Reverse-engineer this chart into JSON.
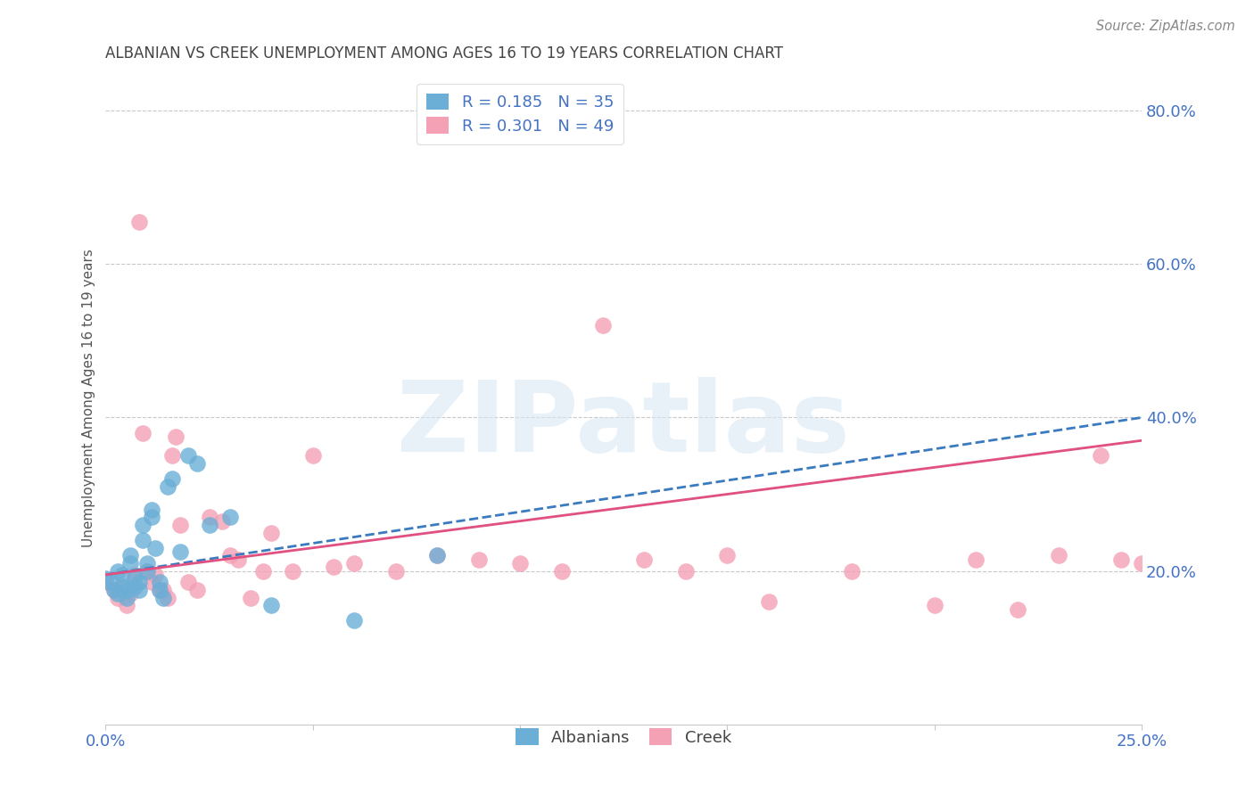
{
  "title": "ALBANIAN VS CREEK UNEMPLOYMENT AMONG AGES 16 TO 19 YEARS CORRELATION CHART",
  "source": "Source: ZipAtlas.com",
  "ylabel": "Unemployment Among Ages 16 to 19 years",
  "xlabel_albanians": "Albanians",
  "xlabel_creek": "Creek",
  "xlim": [
    0.0,
    0.25
  ],
  "ylim": [
    0.0,
    0.85
  ],
  "xticks": [
    0.0,
    0.05,
    0.1,
    0.15,
    0.2,
    0.25
  ],
  "xtick_labels": [
    "0.0%",
    "",
    "",
    "",
    "",
    "25.0%"
  ],
  "ytick_right_labels": [
    "20.0%",
    "40.0%",
    "60.0%",
    "80.0%"
  ],
  "ytick_right_values": [
    0.2,
    0.4,
    0.6,
    0.8
  ],
  "albanian_R": 0.185,
  "albanian_N": 35,
  "creek_R": 0.301,
  "creek_N": 49,
  "albanian_color": "#6baed6",
  "creek_color": "#f4a0b5",
  "albanian_line_color": "#3a7abf",
  "creek_line_color": "#e05080",
  "albanian_x": [
    0.0,
    0.001,
    0.002,
    0.003,
    0.003,
    0.004,
    0.004,
    0.005,
    0.005,
    0.006,
    0.006,
    0.007,
    0.007,
    0.008,
    0.008,
    0.009,
    0.009,
    0.01,
    0.01,
    0.011,
    0.011,
    0.012,
    0.013,
    0.013,
    0.014,
    0.015,
    0.016,
    0.018,
    0.02,
    0.022,
    0.025,
    0.03,
    0.04,
    0.06,
    0.08
  ],
  "albanian_y": [
    0.19,
    0.185,
    0.175,
    0.17,
    0.2,
    0.18,
    0.195,
    0.165,
    0.175,
    0.21,
    0.22,
    0.18,
    0.19,
    0.185,
    0.175,
    0.24,
    0.26,
    0.2,
    0.21,
    0.27,
    0.28,
    0.23,
    0.185,
    0.175,
    0.165,
    0.31,
    0.32,
    0.225,
    0.35,
    0.34,
    0.26,
    0.27,
    0.155,
    0.135,
    0.22
  ],
  "creek_x": [
    0.0,
    0.002,
    0.003,
    0.004,
    0.005,
    0.006,
    0.007,
    0.008,
    0.009,
    0.01,
    0.011,
    0.012,
    0.013,
    0.014,
    0.015,
    0.016,
    0.017,
    0.018,
    0.02,
    0.022,
    0.025,
    0.028,
    0.03,
    0.032,
    0.035,
    0.038,
    0.04,
    0.045,
    0.05,
    0.055,
    0.06,
    0.07,
    0.08,
    0.09,
    0.1,
    0.11,
    0.12,
    0.13,
    0.14,
    0.15,
    0.16,
    0.18,
    0.2,
    0.21,
    0.22,
    0.23,
    0.24,
    0.245,
    0.25
  ],
  "creek_y": [
    0.185,
    0.175,
    0.165,
    0.18,
    0.155,
    0.17,
    0.195,
    0.655,
    0.38,
    0.2,
    0.185,
    0.195,
    0.175,
    0.175,
    0.165,
    0.35,
    0.375,
    0.26,
    0.185,
    0.175,
    0.27,
    0.265,
    0.22,
    0.215,
    0.165,
    0.2,
    0.25,
    0.2,
    0.35,
    0.205,
    0.21,
    0.2,
    0.22,
    0.215,
    0.21,
    0.2,
    0.52,
    0.215,
    0.2,
    0.22,
    0.16,
    0.2,
    0.155,
    0.215,
    0.15,
    0.22,
    0.35,
    0.215,
    0.21
  ],
  "alb_trend_x0": 0.0,
  "alb_trend_x1": 0.25,
  "alb_trend_y0": 0.195,
  "alb_trend_y1": 0.4,
  "creek_trend_x0": 0.0,
  "creek_trend_x1": 0.25,
  "creek_trend_y0": 0.195,
  "creek_trend_y1": 0.37
}
